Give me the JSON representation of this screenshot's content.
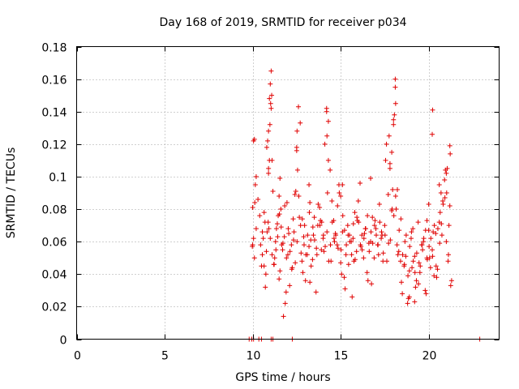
{
  "chart_data": {
    "type": "scatter",
    "title": "Day 168 of 2019, SRMTID for receiver p034",
    "xlabel": "GPS time / hours",
    "ylabel": "SRMTID / TECUs",
    "xlim": [
      0,
      24
    ],
    "ylim": [
      0,
      0.18
    ],
    "xticks": [
      0,
      5,
      10,
      15,
      20
    ],
    "xtick_labels": [
      "0",
      "5",
      "10",
      "15",
      "20"
    ],
    "yticks": [
      0,
      0.02,
      0.04,
      0.06,
      0.08,
      0.1,
      0.12,
      0.14,
      0.16,
      0.18
    ],
    "ytick_labels": [
      "0",
      "0.02",
      "0.04",
      "0.06",
      "0.08",
      "0.1",
      "0.12",
      "0.14",
      "0.16",
      "0.18"
    ],
    "grid": true,
    "marker": "+",
    "color": "#e00000",
    "series": [
      {
        "name": "SRMTID",
        "x": [
          9.8,
          9.95,
          10.05,
          10.35,
          10.5,
          11.05,
          11.15,
          12.25,
          22.9,
          10.0,
          10.05,
          10.1,
          10.15,
          10.2,
          10.0,
          10.05,
          10.1,
          9.98,
          10.12,
          10.5,
          10.6,
          10.7,
          10.75,
          10.8,
          10.85,
          10.9,
          10.95,
          11.0,
          11.05,
          10.55,
          10.65,
          10.72,
          10.82,
          10.9,
          10.98,
          11.02,
          11.08,
          11.1,
          11.2,
          11.3,
          11.4,
          11.5,
          11.6,
          11.7,
          11.8,
          11.9,
          12.0,
          12.1,
          11.25,
          11.35,
          11.45,
          11.55,
          11.65,
          11.75,
          11.85,
          11.95,
          12.05,
          12.2,
          12.3,
          12.4,
          12.5,
          12.6,
          12.7,
          12.8,
          12.9,
          13.0,
          13.1,
          12.25,
          12.35,
          12.45,
          12.55,
          12.65,
          12.75,
          12.85,
          12.95,
          13.2,
          13.3,
          13.4,
          13.5,
          13.6,
          13.7,
          13.8,
          13.9,
          14.0,
          14.1,
          13.25,
          13.45,
          13.65,
          13.85,
          14.05,
          14.2,
          14.3,
          14.4,
          14.5,
          14.6,
          14.7,
          14.8,
          14.9,
          15.0,
          15.1,
          15.2,
          15.3,
          15.4,
          15.5,
          15.6,
          14.25,
          14.45,
          14.65,
          14.85,
          15.05,
          15.25,
          15.45,
          15.65,
          15.7,
          15.8,
          15.9,
          16.0,
          16.1,
          16.2,
          16.3,
          16.4,
          16.5,
          16.6,
          15.75,
          15.95,
          16.15,
          16.35,
          16.55,
          16.7,
          16.8,
          16.9,
          17.0,
          17.1,
          17.2,
          17.3,
          17.4,
          17.5,
          17.6,
          17.7,
          17.8,
          17.9,
          18.0,
          18.1,
          16.75,
          16.95,
          17.15,
          17.35,
          17.55,
          17.75,
          17.95,
          18.15,
          18.2,
          18.3,
          18.4,
          18.5,
          18.6,
          18.7,
          18.8,
          18.9,
          19.0,
          19.1,
          18.25,
          18.45,
          18.65,
          18.85,
          19.05,
          19.2,
          19.3,
          19.4,
          19.5,
          19.6,
          19.7,
          19.8,
          19.9,
          20.0,
          20.1,
          20.2,
          20.3,
          20.4,
          20.5,
          20.6,
          19.25,
          19.45,
          19.65,
          19.85,
          20.05,
          20.25,
          20.45,
          20.65,
          20.7,
          20.8,
          20.9,
          21.0,
          21.1,
          21.2,
          21.3,
          20.75,
          20.95,
          21.15,
          10.2,
          10.3,
          10.4,
          10.45,
          10.55,
          10.65,
          10.78,
          10.88,
          10.92,
          11.0,
          11.1,
          11.15,
          11.22,
          11.32,
          11.42,
          11.52,
          11.62,
          11.72,
          11.82,
          11.92,
          12.02,
          12.12,
          12.22,
          12.32,
          12.42,
          12.52,
          12.62,
          12.72,
          12.82,
          12.92,
          13.02,
          13.12,
          13.22,
          13.32,
          13.42,
          13.52,
          13.62,
          13.72,
          13.82,
          13.92,
          14.02,
          14.12,
          14.22,
          14.32,
          14.42,
          14.52,
          14.62,
          14.72,
          14.82,
          14.92,
          15.02,
          15.12,
          15.22,
          15.32,
          15.42,
          15.52,
          15.62,
          15.72,
          15.82,
          15.92,
          16.02,
          16.12,
          16.22,
          16.32,
          16.42,
          16.52,
          16.62,
          16.72,
          16.82,
          16.92,
          17.02,
          17.12,
          17.22,
          17.32,
          17.42,
          17.52,
          17.62,
          17.72,
          17.82,
          17.92,
          18.02,
          18.12,
          18.22,
          18.32,
          18.42,
          18.52,
          18.62,
          18.72,
          18.82,
          18.92,
          19.02,
          19.12,
          19.22,
          19.32,
          19.42,
          19.52,
          19.62,
          19.72,
          19.82,
          19.92,
          20.02,
          20.12,
          20.22,
          20.32,
          20.42,
          20.52,
          20.62,
          20.72,
          20.82,
          20.92,
          21.02,
          21.12,
          21.22,
          21.05,
          21.25,
          10.9,
          10.95,
          11.05,
          12.5,
          12.52,
          14.2,
          14.22,
          14.3,
          18.0,
          18.05,
          18.1,
          18.12,
          20.2,
          20.22,
          20.6,
          21.0,
          21.2,
          15.0,
          15.1,
          16.7,
          17.8,
          17.9,
          13.2,
          13.25,
          11.5,
          11.55,
          19.9,
          20.0,
          19.2,
          18.9
        ],
        "y": [
          0,
          0,
          0,
          0,
          0,
          0,
          0,
          0,
          0,
          0.058,
          0.062,
          0.05,
          0.095,
          0.068,
          0.081,
          0.122,
          0.123,
          0.057,
          0.084,
          0.045,
          0.062,
          0.072,
          0.04,
          0.118,
          0.122,
          0.128,
          0.148,
          0.157,
          0.165,
          0.052,
          0.078,
          0.032,
          0.066,
          0.102,
          0.132,
          0.145,
          0.15,
          0.11,
          0.046,
          0.06,
          0.071,
          0.037,
          0.08,
          0.055,
          0.063,
          0.029,
          0.052,
          0.033,
          0.05,
          0.068,
          0.076,
          0.042,
          0.058,
          0.014,
          0.022,
          0.084,
          0.065,
          0.058,
          0.074,
          0.089,
          0.118,
          0.143,
          0.133,
          0.048,
          0.063,
          0.036,
          0.052,
          0.044,
          0.066,
          0.091,
          0.104,
          0.075,
          0.053,
          0.041,
          0.07,
          0.057,
          0.061,
          0.049,
          0.075,
          0.029,
          0.07,
          0.081,
          0.055,
          0.062,
          0.12,
          0.035,
          0.064,
          0.052,
          0.073,
          0.054,
          0.142,
          0.134,
          0.104,
          0.085,
          0.073,
          0.065,
          0.058,
          0.095,
          0.047,
          0.066,
          0.038,
          0.052,
          0.07,
          0.064,
          0.06,
          0.09,
          0.048,
          0.06,
          0.056,
          0.04,
          0.031,
          0.046,
          0.026,
          0.062,
          0.078,
          0.054,
          0.085,
          0.096,
          0.064,
          0.05,
          0.068,
          0.041,
          0.059,
          0.048,
          0.073,
          0.057,
          0.065,
          0.036,
          0.06,
          0.075,
          0.05,
          0.068,
          0.058,
          0.083,
          0.062,
          0.048,
          0.07,
          0.12,
          0.089,
          0.108,
          0.079,
          0.135,
          0.16,
          0.034,
          0.073,
          0.052,
          0.064,
          0.11,
          0.125,
          0.092,
          0.08,
          0.058,
          0.054,
          0.048,
          0.028,
          0.045,
          0.051,
          0.022,
          0.042,
          0.062,
          0.068,
          0.052,
          0.035,
          0.06,
          0.025,
          0.044,
          0.051,
          0.036,
          0.072,
          0.041,
          0.058,
          0.06,
          0.03,
          0.05,
          0.067,
          0.044,
          0.055,
          0.039,
          0.065,
          0.043,
          0.072,
          0.032,
          0.047,
          0.055,
          0.028,
          0.05,
          0.066,
          0.038,
          0.078,
          0.09,
          0.085,
          0.098,
          0.06,
          0.048,
          0.082,
          0.036,
          0.064,
          0.104,
          0.07,
          0.1,
          0.086,
          0.076,
          0.058,
          0.066,
          0.045,
          0.054,
          0.072,
          0.068,
          0.062,
          0.052,
          0.091,
          0.046,
          0.055,
          0.063,
          0.077,
          0.069,
          0.059,
          0.082,
          0.05,
          0.068,
          0.054,
          0.043,
          0.061,
          0.047,
          0.06,
          0.088,
          0.07,
          0.074,
          0.058,
          0.052,
          0.064,
          0.078,
          0.045,
          0.069,
          0.061,
          0.056,
          0.083,
          0.07,
          0.072,
          0.064,
          0.057,
          0.066,
          0.048,
          0.058,
          0.072,
          0.062,
          0.064,
          0.082,
          0.09,
          0.055,
          0.076,
          0.067,
          0.058,
          0.064,
          0.06,
          0.052,
          0.071,
          0.049,
          0.075,
          0.072,
          0.058,
          0.055,
          0.062,
          0.068,
          0.076,
          0.054,
          0.066,
          0.059,
          0.07,
          0.064,
          0.058,
          0.072,
          0.066,
          0.053,
          0.064,
          0.048,
          0.059,
          0.061,
          0.08,
          0.076,
          0.088,
          0.092,
          0.067,
          0.074,
          0.052,
          0.046,
          0.064,
          0.039,
          0.057,
          0.066,
          0.048,
          0.041,
          0.053,
          0.034,
          0.045,
          0.058,
          0.062,
          0.067,
          0.049,
          0.057,
          0.062,
          0.051,
          0.07,
          0.045,
          0.068,
          0.059,
          0.071,
          0.083,
          0.087,
          0.09,
          0.052,
          0.114,
          0.105,
          0.033,
          0.105,
          0.11,
          0.142,
          0.116,
          0.128,
          0.14,
          0.125,
          0.11,
          0.132,
          0.138,
          0.155,
          0.145,
          0.126,
          0.141,
          0.095,
          0.102,
          0.119,
          0.088,
          0.095,
          0.099,
          0.105,
          0.115,
          0.095,
          0.084,
          0.088,
          0.099,
          0.073,
          0.083,
          0.023,
          0.026
        ]
      }
    ]
  }
}
